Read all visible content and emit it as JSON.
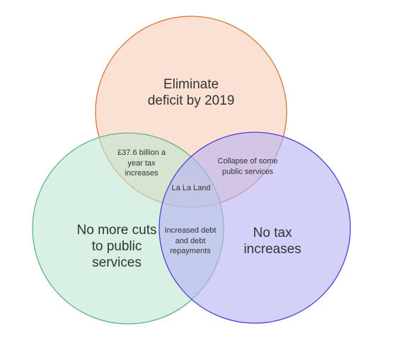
{
  "sets": [
    {
      "id": "top",
      "label": "Eliminate\ndeficit by 2019",
      "fill": "#f6cdb5",
      "stroke": "#d3783d"
    },
    {
      "id": "left",
      "label": "No more cuts\nto public\nservices",
      "fill": "#bfe6d2",
      "stroke": "#5fb08a"
    },
    {
      "id": "right",
      "label": "No tax\nincreases",
      "fill": "#b7b2f3",
      "stroke": "#4d3fd8"
    }
  ],
  "intersections": {
    "top_left": "£37.6 billion a\nyear tax\nincreases",
    "top_right": "Collapse of some\npublic services",
    "left_right": "Increased debt\nand debt\nrepayments",
    "all": "La La Land"
  }
}
